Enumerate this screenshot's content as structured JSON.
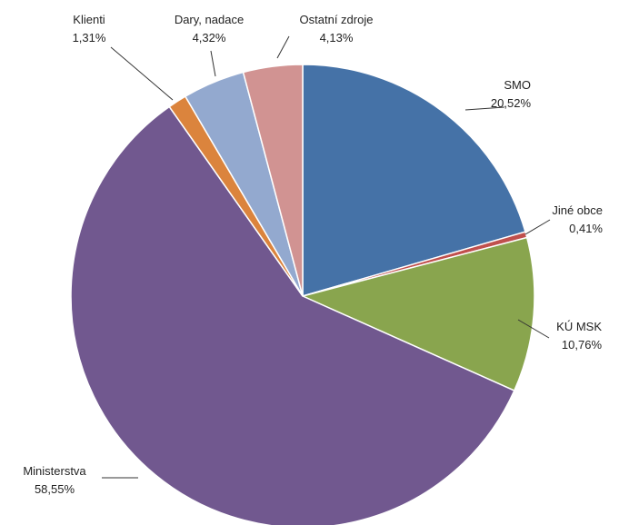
{
  "chart_data": {
    "type": "pie",
    "title": "",
    "slices": [
      {
        "label": "SMO",
        "value_text": "20,52%",
        "value": 20.52,
        "color": "#4572A7"
      },
      {
        "label": "Jiné obce",
        "value_text": "0,41%",
        "value": 0.41,
        "color": "#C0504D"
      },
      {
        "label": "KÚ MSK",
        "value_text": "10,76%",
        "value": 10.76,
        "color": "#89A54E"
      },
      {
        "label": "Ministerstva",
        "value_text": "58,55%",
        "value": 58.55,
        "color": "#71588F"
      },
      {
        "label": "Klienti",
        "value_text": "1,31%",
        "value": 1.31,
        "color": "#DB843D"
      },
      {
        "label": "Dary, nadace",
        "value_text": "4,32%",
        "value": 4.32,
        "color": "#93A9CF"
      },
      {
        "label": "Ostatní zdroje",
        "value_text": "4,13%",
        "value": 4.13,
        "color": "#D19392"
      }
    ]
  }
}
